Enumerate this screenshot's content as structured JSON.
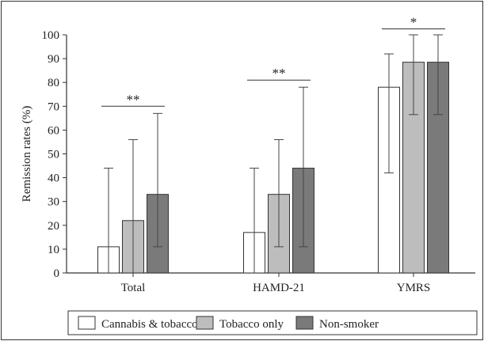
{
  "chart_data": {
    "type": "bar",
    "categories": [
      "Total",
      "HAMD-21",
      "YMRS"
    ],
    "ylabel": "Remission rates (%)",
    "ylim": [
      0,
      100
    ],
    "yticks": [
      0,
      10,
      20,
      30,
      40,
      50,
      60,
      70,
      80,
      90,
      100
    ],
    "grid": false,
    "legend_position": "bottom",
    "series": [
      {
        "name": "Cannabis & tobacco",
        "color": "#ffffff",
        "values": [
          11,
          17,
          78
        ],
        "err_low": [
          0,
          0,
          42
        ],
        "err_high": [
          44,
          44,
          92
        ]
      },
      {
        "name": "Tobacco only",
        "color": "#bdbdbd",
        "values": [
          22,
          33,
          88.5
        ],
        "err_low": [
          0,
          11,
          66.5
        ],
        "err_high": [
          56,
          56,
          100
        ]
      },
      {
        "name": "Non-smoker",
        "color": "#7a7a7a",
        "values": [
          33,
          44,
          88.5
        ],
        "err_low": [
          11,
          11,
          66.5
        ],
        "err_high": [
          67,
          78,
          100
        ]
      }
    ],
    "annotations": [
      {
        "category": "Total",
        "label": "**",
        "y": 70
      },
      {
        "category": "HAMD-21",
        "label": "**",
        "y": 81
      },
      {
        "category": "YMRS",
        "label": "*",
        "y": 102.5
      }
    ]
  }
}
